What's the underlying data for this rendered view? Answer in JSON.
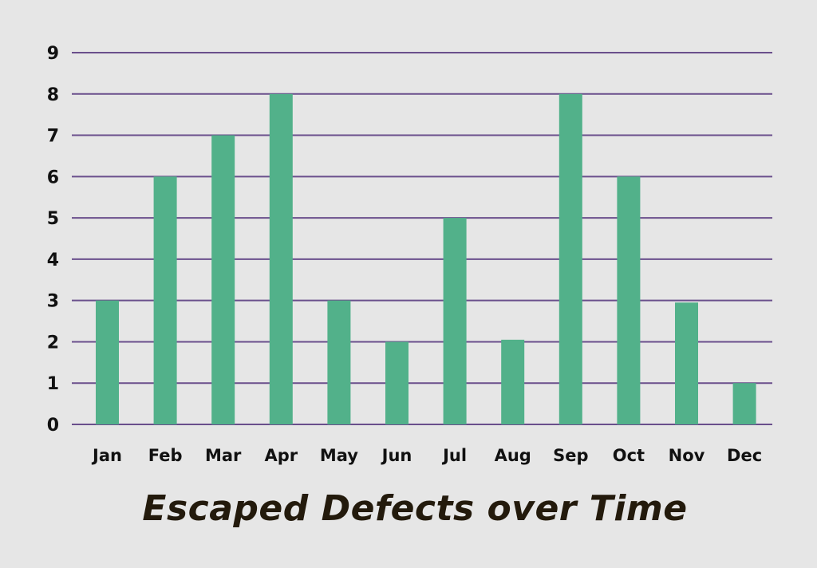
{
  "chart_data": {
    "type": "bar",
    "title": "Escaped Defects over Time",
    "xlabel": "",
    "ylabel": "",
    "categories": [
      "Jan",
      "Feb",
      "Mar",
      "Apr",
      "May",
      "Jun",
      "Jul",
      "Aug",
      "Sep",
      "Oct",
      "Nov",
      "Dec"
    ],
    "values": [
      3,
      6,
      7,
      8,
      3,
      2,
      5,
      2.05,
      8,
      6,
      2.95,
      1
    ],
    "ylim": [
      0,
      9
    ],
    "yticks": [
      "0",
      "1",
      "2",
      "3",
      "4",
      "5",
      "6",
      "7",
      "8",
      "9"
    ],
    "grid": true,
    "legend": "none",
    "colors": {
      "bar": "#52b18a",
      "grid": "#6a4f8c",
      "text": "#111111",
      "title": "#231a0c",
      "background": "#e6e6e6"
    }
  }
}
